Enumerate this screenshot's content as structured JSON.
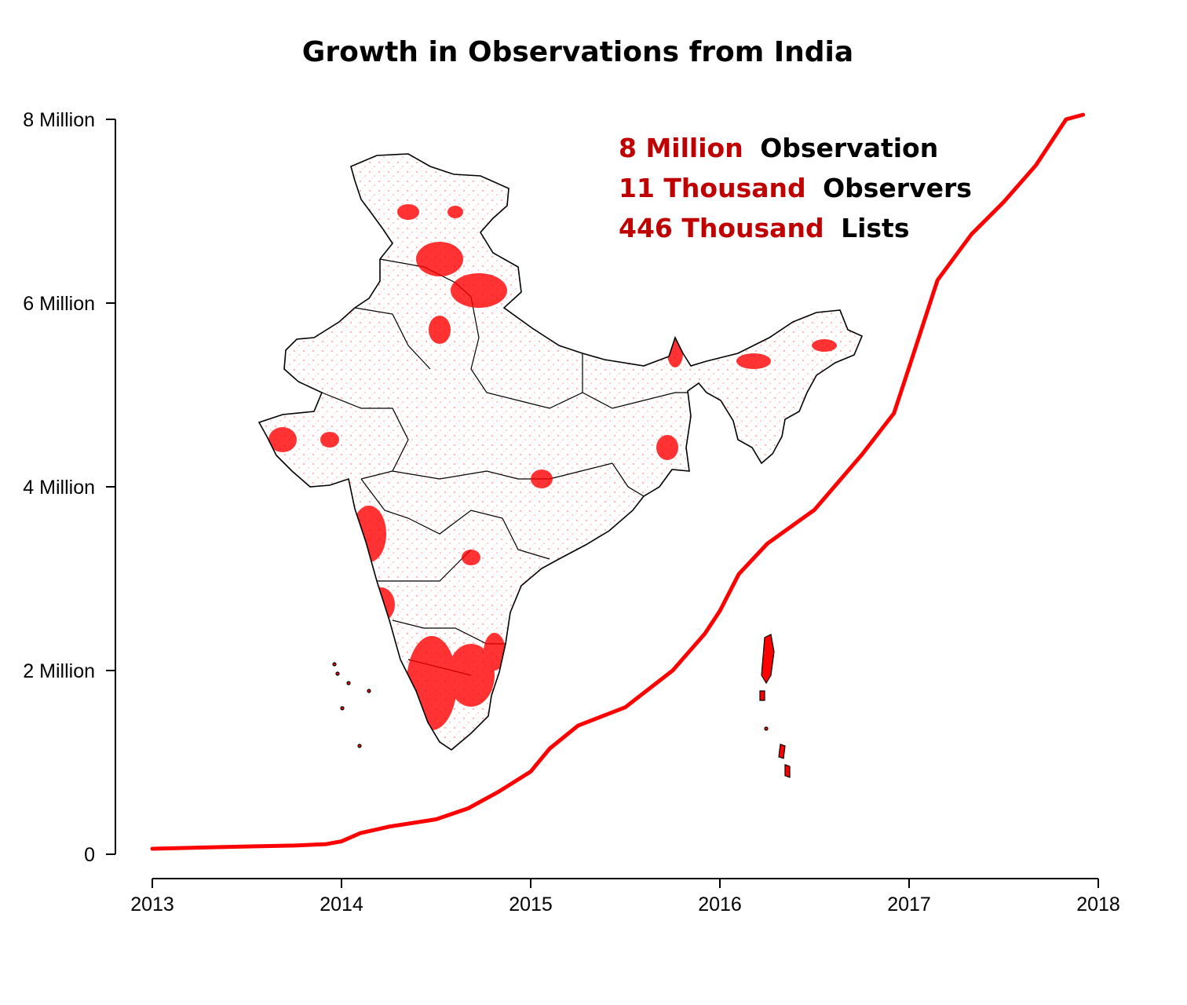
{
  "chart_data": {
    "type": "line",
    "title": "Growth in Observations from India",
    "xlabel": "",
    "ylabel": "",
    "xlim": [
      2013,
      2018
    ],
    "ylim": [
      0,
      8000000
    ],
    "x_ticks": [
      {
        "value": 2013,
        "label": "2013"
      },
      {
        "value": 2014,
        "label": "2014"
      },
      {
        "value": 2015,
        "label": "2015"
      },
      {
        "value": 2016,
        "label": "2016"
      },
      {
        "value": 2017,
        "label": "2017"
      },
      {
        "value": 2018,
        "label": "2018"
      }
    ],
    "y_ticks": [
      {
        "value": 0,
        "label": "0"
      },
      {
        "value": 2000000,
        "label": "2 Million"
      },
      {
        "value": 4000000,
        "label": "4 Million"
      },
      {
        "value": 6000000,
        "label": "6 Million"
      },
      {
        "value": 8000000,
        "label": "8 Million"
      }
    ],
    "grid": false,
    "series": [
      {
        "color": "#ff0000",
        "points": [
          [
            2013.0,
            60000
          ],
          [
            2013.5,
            85000
          ],
          [
            2013.75,
            95000
          ],
          [
            2013.92,
            110000
          ],
          [
            2014.0,
            140000
          ],
          [
            2014.1,
            230000
          ],
          [
            2014.25,
            300000
          ],
          [
            2014.5,
            380000
          ],
          [
            2014.67,
            500000
          ],
          [
            2014.83,
            680000
          ],
          [
            2015.0,
            900000
          ],
          [
            2015.1,
            1150000
          ],
          [
            2015.25,
            1400000
          ],
          [
            2015.5,
            1600000
          ],
          [
            2015.75,
            2000000
          ],
          [
            2015.92,
            2400000
          ],
          [
            2016.0,
            2650000
          ],
          [
            2016.1,
            3050000
          ],
          [
            2016.25,
            3380000
          ],
          [
            2016.5,
            3750000
          ],
          [
            2016.75,
            4350000
          ],
          [
            2016.92,
            4800000
          ],
          [
            2017.0,
            5300000
          ],
          [
            2017.15,
            6250000
          ],
          [
            2017.33,
            6750000
          ],
          [
            2017.5,
            7100000
          ],
          [
            2017.67,
            7500000
          ],
          [
            2017.83,
            8000000
          ],
          [
            2017.92,
            8050000
          ]
        ]
      }
    ],
    "annotations": [
      {
        "value": "8 Million",
        "label": "Observation"
      },
      {
        "value": "11 Thousand",
        "label": "Observers"
      },
      {
        "value": "446 Thousand",
        "label": "Lists"
      }
    ],
    "annotation_placement": "top-right",
    "inset": "map of India with observation locations shown as red dots",
    "colors": {
      "highlight": "#c00000",
      "line": "#ff0000",
      "text": "#000000",
      "map_dots": "#ff0000",
      "map_outline": "#000000"
    }
  }
}
